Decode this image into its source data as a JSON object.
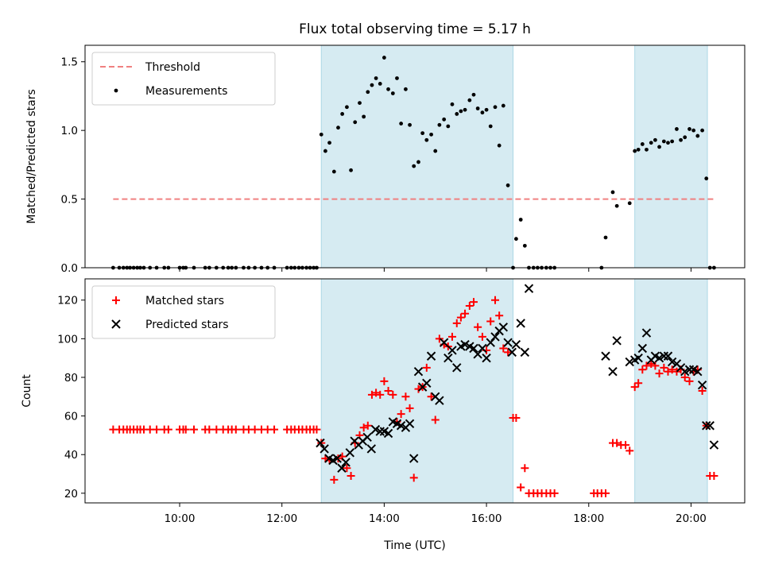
{
  "chart_data": [
    {
      "type": "scatter",
      "title": "Flux total observing time = 5.17 h",
      "xlabel": "",
      "ylabel": "Matched/Predicted stars",
      "xlim": [
        8.15,
        21.05
      ],
      "ylim": [
        0,
        1.62
      ],
      "yticks": [
        "0.0",
        "0.5",
        "1.0",
        "1.5"
      ],
      "grid": false,
      "legend_position": "top-left",
      "shaded_regions": [
        [
          12.77,
          16.52
        ],
        [
          18.9,
          20.32
        ]
      ],
      "threshold": {
        "name": "Threshold",
        "y": 0.5,
        "x": [
          8.7,
          20.45
        ],
        "color": "#f08080"
      },
      "series": [
        {
          "name": "Measurements",
          "color": "#000000",
          "x": [
            8.7,
            8.82,
            8.9,
            8.97,
            9.03,
            9.1,
            9.17,
            9.23,
            9.3,
            9.42,
            9.55,
            9.7,
            9.78,
            10.0,
            10.07,
            10.12,
            10.28,
            10.5,
            10.58,
            10.72,
            10.85,
            10.95,
            11.02,
            11.1,
            11.25,
            11.35,
            11.47,
            11.6,
            11.72,
            11.85,
            12.1,
            12.18,
            12.25,
            12.33,
            12.4,
            12.48,
            12.55,
            12.62,
            12.68,
            12.77,
            12.85,
            12.93,
            13.02,
            13.1,
            13.18,
            13.27,
            13.35,
            13.43,
            13.52,
            13.6,
            13.68,
            13.76,
            13.84,
            13.92,
            14.0,
            14.08,
            14.17,
            14.25,
            14.33,
            14.42,
            14.5,
            14.58,
            14.67,
            14.75,
            14.83,
            14.92,
            15.0,
            15.08,
            15.17,
            15.25,
            15.33,
            15.42,
            15.5,
            15.58,
            15.67,
            15.75,
            15.83,
            15.92,
            16.0,
            16.08,
            16.17,
            16.25,
            16.33,
            16.42,
            16.52,
            16.58,
            16.67,
            16.75,
            16.83,
            16.92,
            17.0,
            17.08,
            17.17,
            17.25,
            17.33,
            18.25,
            18.33,
            18.47,
            18.55,
            18.8,
            18.9,
            18.97,
            19.05,
            19.13,
            19.22,
            19.3,
            19.38,
            19.47,
            19.55,
            19.63,
            19.72,
            19.8,
            19.88,
            19.97,
            20.05,
            20.13,
            20.22,
            20.3,
            20.37,
            20.45
          ],
          "y": [
            0,
            0,
            0,
            0,
            0,
            0,
            0,
            0,
            0,
            0,
            0,
            0,
            0,
            0,
            0,
            0,
            0,
            0,
            0,
            0,
            0,
            0,
            0,
            0,
            0,
            0,
            0,
            0,
            0,
            0,
            0,
            0,
            0,
            0,
            0,
            0,
            0,
            0,
            0,
            0.97,
            0.85,
            0.91,
            0.7,
            1.02,
            1.12,
            1.17,
            0.71,
            1.06,
            1.2,
            1.1,
            1.28,
            1.33,
            1.38,
            1.34,
            1.53,
            1.3,
            1.27,
            1.38,
            1.05,
            1.3,
            1.04,
            0.74,
            0.77,
            0.98,
            0.93,
            0.97,
            0.85,
            1.04,
            1.08,
            1.03,
            1.19,
            1.12,
            1.14,
            1.15,
            1.22,
            1.26,
            1.16,
            1.13,
            1.15,
            1.03,
            1.17,
            0.89,
            1.18,
            0.6,
            0,
            0.21,
            0.35,
            0.16,
            0,
            0,
            0,
            0,
            0,
            0,
            0,
            0,
            0.22,
            0.55,
            0.45,
            0.47,
            0.85,
            0.86,
            0.9,
            0.86,
            0.91,
            0.93,
            0.88,
            0.92,
            0.91,
            0.92,
            1.01,
            0.93,
            0.95,
            1.01,
            1.0,
            0.96,
            1.0,
            0.65,
            0,
            0
          ]
        }
      ]
    },
    {
      "type": "scatter",
      "title": "",
      "xlabel": "Time (UTC)",
      "ylabel": "Count",
      "xlim": [
        8.15,
        21.05
      ],
      "ylim": [
        15,
        131
      ],
      "xticks": [
        "10:00",
        "12:00",
        "14:00",
        "16:00",
        "18:00",
        "20:00"
      ],
      "yticks": [
        "20",
        "40",
        "60",
        "80",
        "100",
        "120"
      ],
      "grid": false,
      "legend_position": "top-left",
      "shaded_regions": [
        [
          12.77,
          16.52
        ],
        [
          18.9,
          20.32
        ]
      ],
      "series": [
        {
          "name": "Matched stars",
          "color": "#ff0000",
          "marker": "plus",
          "x": [
            8.7,
            8.82,
            8.9,
            8.97,
            9.03,
            9.1,
            9.17,
            9.23,
            9.3,
            9.42,
            9.55,
            9.7,
            9.78,
            10.0,
            10.07,
            10.12,
            10.28,
            10.5,
            10.58,
            10.72,
            10.85,
            10.95,
            11.02,
            11.1,
            11.25,
            11.35,
            11.47,
            11.6,
            11.72,
            11.85,
            12.1,
            12.18,
            12.25,
            12.33,
            12.4,
            12.48,
            12.55,
            12.62,
            12.68,
            12.77,
            12.85,
            12.93,
            13.02,
            13.1,
            13.18,
            13.27,
            13.35,
            13.43,
            13.52,
            13.6,
            13.68,
            13.76,
            13.84,
            13.92,
            14.0,
            14.08,
            14.17,
            14.25,
            14.33,
            14.42,
            14.5,
            14.58,
            14.67,
            14.75,
            14.83,
            14.92,
            15.0,
            15.08,
            15.17,
            15.25,
            15.33,
            15.42,
            15.5,
            15.58,
            15.67,
            15.75,
            15.83,
            15.92,
            16.0,
            16.08,
            16.17,
            16.25,
            16.33,
            16.42,
            16.52,
            16.58,
            16.67,
            16.75,
            16.83,
            16.92,
            17.0,
            17.08,
            17.17,
            17.25,
            17.33,
            18.1,
            18.17,
            18.25,
            18.33,
            18.47,
            18.55,
            18.63,
            18.72,
            18.8,
            18.9,
            18.97,
            19.05,
            19.13,
            19.22,
            19.3,
            19.38,
            19.47,
            19.55,
            19.63,
            19.72,
            19.8,
            19.88,
            19.97,
            20.05,
            20.13,
            20.22,
            20.3,
            20.37,
            20.45
          ],
          "y": [
            53,
            53,
            53,
            53,
            53,
            53,
            53,
            53,
            53,
            53,
            53,
            53,
            53,
            53,
            53,
            53,
            53,
            53,
            53,
            53,
            53,
            53,
            53,
            53,
            53,
            53,
            53,
            53,
            53,
            53,
            53,
            53,
            53,
            53,
            53,
            53,
            53,
            53,
            53,
            46,
            38,
            37,
            27,
            38,
            39,
            33,
            29,
            46,
            50,
            54,
            55,
            71,
            72,
            71,
            78,
            73,
            71,
            57,
            61,
            70,
            64,
            28,
            74,
            75,
            85,
            70,
            58,
            100,
            97,
            96,
            101,
            108,
            111,
            113,
            117,
            119,
            106,
            101,
            94,
            109,
            120,
            112,
            95,
            93,
            59,
            59,
            23,
            33,
            20,
            20,
            20,
            20,
            20,
            20,
            20,
            20,
            20,
            20,
            20,
            46,
            46,
            45,
            45,
            42,
            75,
            77,
            84,
            86,
            87,
            86,
            82,
            85,
            83,
            84,
            83,
            84,
            80,
            78,
            83,
            84,
            73,
            55,
            29,
            29
          ]
        },
        {
          "name": "Predicted stars",
          "color": "#000000",
          "marker": "x",
          "x": [
            12.75,
            12.83,
            12.92,
            13.0,
            13.08,
            13.17,
            13.25,
            13.33,
            13.42,
            13.5,
            13.58,
            13.67,
            13.75,
            13.83,
            13.92,
            14.0,
            14.08,
            14.17,
            14.25,
            14.33,
            14.42,
            14.5,
            14.58,
            14.67,
            14.75,
            14.83,
            14.92,
            15.0,
            15.08,
            15.17,
            15.25,
            15.33,
            15.42,
            15.5,
            15.58,
            15.67,
            15.75,
            15.83,
            15.92,
            16.0,
            16.08,
            16.17,
            16.25,
            16.33,
            16.42,
            16.5,
            16.58,
            16.67,
            16.75,
            16.83,
            18.33,
            18.47,
            18.55,
            18.8,
            18.9,
            18.97,
            19.05,
            19.13,
            19.22,
            19.3,
            19.38,
            19.47,
            19.55,
            19.63,
            19.72,
            19.8,
            19.88,
            19.97,
            20.05,
            20.13,
            20.22,
            20.3,
            20.37,
            20.45
          ],
          "y": [
            46,
            43,
            38,
            37,
            38,
            33,
            36,
            41,
            47,
            45,
            47,
            49,
            43,
            53,
            52,
            52,
            51,
            57,
            56,
            55,
            54,
            56,
            38,
            83,
            75,
            77,
            91,
            70,
            68,
            98,
            90,
            94,
            85,
            96,
            97,
            96,
            95,
            92,
            95,
            90,
            98,
            101,
            104,
            106,
            98,
            93,
            97,
            108,
            93,
            126,
            91,
            83,
            99,
            88,
            89,
            90,
            95,
            103,
            89,
            91,
            90,
            91,
            91,
            88,
            87,
            85,
            83,
            84,
            84,
            83,
            76,
            55,
            55,
            45
          ]
        }
      ]
    }
  ]
}
